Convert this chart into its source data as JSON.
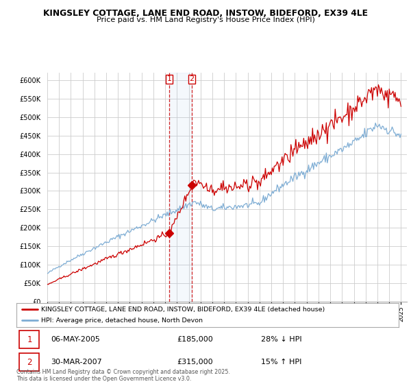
{
  "title_line1": "KINGSLEY COTTAGE, LANE END ROAD, INSTOW, BIDEFORD, EX39 4LE",
  "title_line2": "Price paid vs. HM Land Registry's House Price Index (HPI)",
  "background_color": "#ffffff",
  "plot_bg_color": "#ffffff",
  "grid_color": "#cccccc",
  "hpi_color": "#7eadd4",
  "property_color": "#cc0000",
  "ylim": [
    0,
    620000
  ],
  "xlim_start": 1995.0,
  "xlim_end": 2025.5,
  "purchase1_date": 2005.36,
  "purchase1_price": 185000,
  "purchase2_date": 2007.25,
  "purchase2_price": 315000,
  "legend_property": "KINGSLEY COTTAGE, LANE END ROAD, INSTOW, BIDEFORD, EX39 4LE (detached house)",
  "legend_hpi": "HPI: Average price, detached house, North Devon",
  "table_row1_num": "1",
  "table_row1_date": "06-MAY-2005",
  "table_row1_price": "£185,000",
  "table_row1_hpi": "28% ↓ HPI",
  "table_row2_num": "2",
  "table_row2_date": "30-MAR-2007",
  "table_row2_price": "£315,000",
  "table_row2_hpi": "15% ↑ HPI",
  "footnote": "Contains HM Land Registry data © Crown copyright and database right 2025.\nThis data is licensed under the Open Government Licence v3.0.",
  "yticks": [
    0,
    50000,
    100000,
    150000,
    200000,
    250000,
    300000,
    350000,
    400000,
    450000,
    500000,
    550000,
    600000
  ]
}
